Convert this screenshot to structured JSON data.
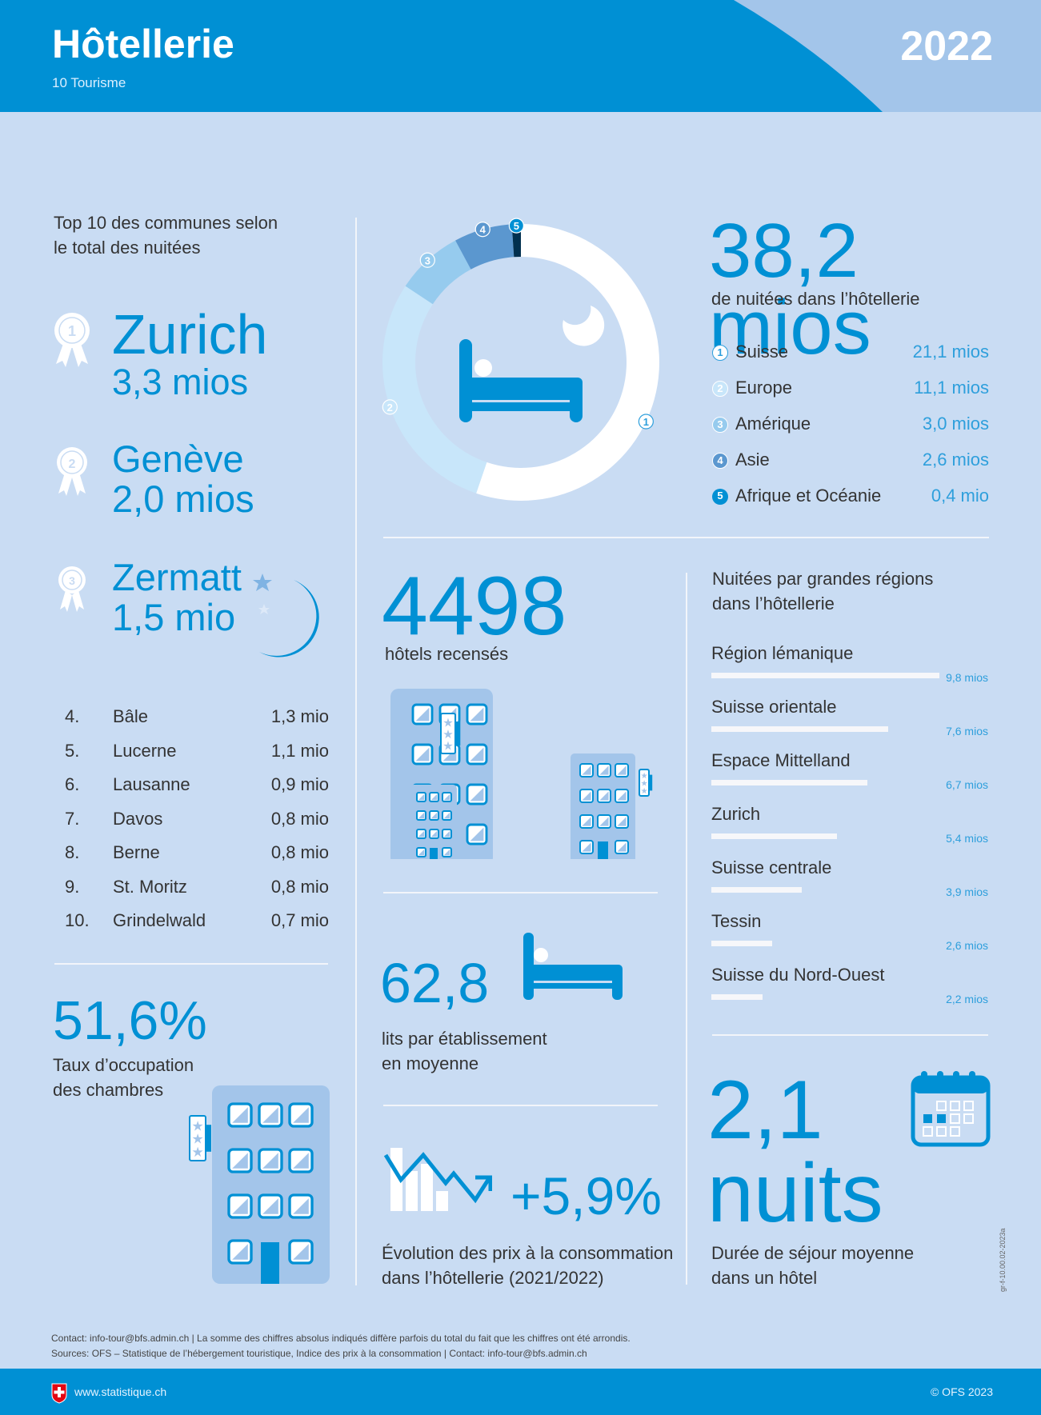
{
  "header": {
    "title": "Hôtellerie",
    "subtitle": "10 Tourisme",
    "year": "2022"
  },
  "colors": {
    "accent": "#0090d4",
    "background": "#c9dcf3",
    "header_light": "#a3c5ea"
  },
  "top_communes": {
    "title_line1": "Top 10 des communes selon",
    "title_line2": "le total des nuitées",
    "podium": [
      {
        "rank": "1",
        "name": "Zurich",
        "value": "3,3 mios"
      },
      {
        "rank": "2",
        "name": "Genève",
        "value": "2,0 mios"
      },
      {
        "rank": "3",
        "name": "Zermatt",
        "value": "1,5 mio"
      }
    ],
    "list": [
      {
        "rank": "4.",
        "name": "Bâle",
        "value": "1,3 mio"
      },
      {
        "rank": "5.",
        "name": "Lucerne",
        "value": "1,1 mio"
      },
      {
        "rank": "6.",
        "name": "Lausanne",
        "value": "0,9 mio"
      },
      {
        "rank": "7.",
        "name": "Davos",
        "value": "0,8 mio"
      },
      {
        "rank": "8.",
        "name": "Berne",
        "value": "0,8 mio"
      },
      {
        "rank": "9.",
        "name": "St. Moritz",
        "value": "0,8 mio"
      },
      {
        "rank": "10.",
        "name": "Grindelwald",
        "value": "0,7 mio"
      }
    ]
  },
  "occupancy": {
    "value": "51,6%",
    "label_line1": "Taux d’occupation",
    "label_line2": "des chambres"
  },
  "total": {
    "value": "38,2 mios",
    "label": "de nuitées dans l’hôtellerie"
  },
  "hotels": {
    "value": "4498",
    "label": "hôtels recensés"
  },
  "beds": {
    "value": "62,8",
    "label_line1": "lits par établissement",
    "label_line2": "en moyenne"
  },
  "prices": {
    "value": "+5,9%",
    "label_line1": "Évolution des prix à la consommation",
    "label_line2": "dans l’hôtellerie (2021/2022)"
  },
  "stay": {
    "value1": "2,1",
    "value2": "nuits",
    "label_line1": "Durée de séjour moyenne",
    "label_line2": "dans un hôtel"
  },
  "chart_data": [
    {
      "type": "pie",
      "variant": "donut",
      "title": "38,2 mios",
      "start": "top",
      "direction": "clockwise",
      "categories": [
        "Suisse",
        "Europe",
        "Amérique",
        "Asie",
        "Afrique et Océanie"
      ],
      "markers": [
        "1",
        "2",
        "3",
        "4",
        "5"
      ],
      "values": [
        21.1,
        11.1,
        3.0,
        2.6,
        0.4
      ],
      "labels": [
        "21,1 mios",
        "11,1 mios",
        "3,0 mios",
        "2,6 mios",
        "0,4 mio"
      ],
      "colors": [
        "#ffffff",
        "#c8e6fa",
        "#96cbee",
        "#5b97cf",
        "#00304f"
      ]
    },
    {
      "type": "bar",
      "orientation": "horizontal",
      "title": "Nuitées par grandes régions",
      "title_line1": "Nuitées par grandes régions",
      "title_line2": "dans l’hôtellerie",
      "categories": [
        "Région lémanique",
        "Suisse orientale",
        "Espace Mittelland",
        "Zurich",
        "Suisse centrale",
        "Tessin",
        "Suisse du Nord-Ouest"
      ],
      "values": [
        9.8,
        7.6,
        6.7,
        5.4,
        3.9,
        2.6,
        2.2
      ],
      "labels": [
        "9,8 mios",
        "7,6 mios",
        "6,7 mios",
        "5,4 mios",
        "3,9 mios",
        "2,6  mios",
        "2,2 mios"
      ],
      "bar_color": "#f6f7fa"
    }
  ],
  "side_code": "gr-f-10.00.02-2023a",
  "footnotes": {
    "line1": "Contact: info-tour@bfs.admin.ch | La somme des chiffres absolus indiqués diffère parfois du total du fait que les chiffres ont été arrondis.",
    "line2": "Sources: OFS – Statistique de l’hébergement touristique, Indice des prix à la consommation | Contact: info-tour@bfs.admin.ch"
  },
  "footer": {
    "website": "www.statistique.ch",
    "copyright": "© OFS 2023"
  }
}
